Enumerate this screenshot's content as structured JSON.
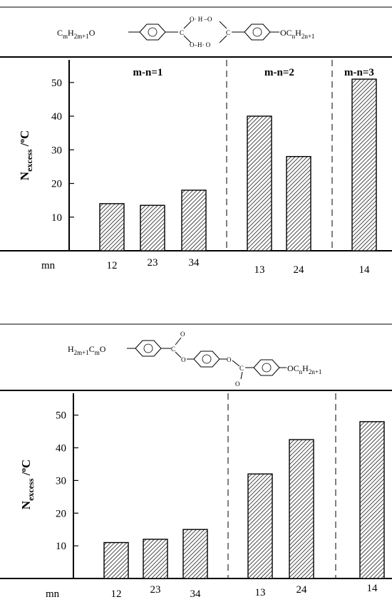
{
  "chart_data": [
    {
      "type": "bar",
      "molecule": {
        "left_group": "C",
        "left_sub1": "m",
        "left_mid": "H",
        "left_sub2": "2m+1",
        "left_tail": "O",
        "bridge_top": "O· H –O",
        "bridge_bottom": "O–H· O",
        "right_head": "OC",
        "right_sub1": "n",
        "right_mid": "H",
        "right_sub2": "2n+1"
      },
      "ylabel_main": "N",
      "ylabel_sub": "excess",
      "ylabel_unit": " /",
      "ylabel_sup": "o",
      "ylabel_unit_end": "C",
      "ylim": [
        0,
        58
      ],
      "yticks": [
        10,
        20,
        30,
        40,
        50
      ],
      "xlabel_prefix": "mn",
      "groups": [
        {
          "label": "m-n=1",
          "categories": [
            "12",
            "23",
            "34"
          ],
          "values": [
            14,
            13.5,
            18
          ]
        },
        {
          "label": "m-n=2",
          "categories": [
            "13",
            "24"
          ],
          "values": [
            40,
            28
          ]
        },
        {
          "label": "m-n=3",
          "categories": [
            "14"
          ],
          "values": [
            51
          ]
        }
      ]
    },
    {
      "type": "bar",
      "molecule": {
        "left_group": "H",
        "left_sub1": "2m+1",
        "left_mid": "C",
        "left_sub2": "m",
        "left_tail": "O",
        "right_head": "OC",
        "right_sub1": "n",
        "right_mid": "H",
        "right_sub2": "2n+1",
        "carbonyl_o": "O",
        "ester_o": "O",
        "carbon": "C"
      },
      "ylabel_main": "N",
      "ylabel_sub": "excess",
      "ylabel_unit": " /",
      "ylabel_sup": "o",
      "ylabel_unit_end": "C",
      "ylim": [
        0,
        58
      ],
      "yticks": [
        10,
        20,
        30,
        40,
        50
      ],
      "xlabel_prefix": "mn",
      "groups": [
        {
          "label": "",
          "categories": [
            "12",
            "23",
            "34"
          ],
          "values": [
            11,
            12,
            15
          ]
        },
        {
          "label": "",
          "categories": [
            "13",
            "24"
          ],
          "values": [
            32,
            42.5
          ]
        },
        {
          "label": "",
          "categories": [
            "14"
          ],
          "values": [
            48
          ]
        }
      ]
    }
  ]
}
